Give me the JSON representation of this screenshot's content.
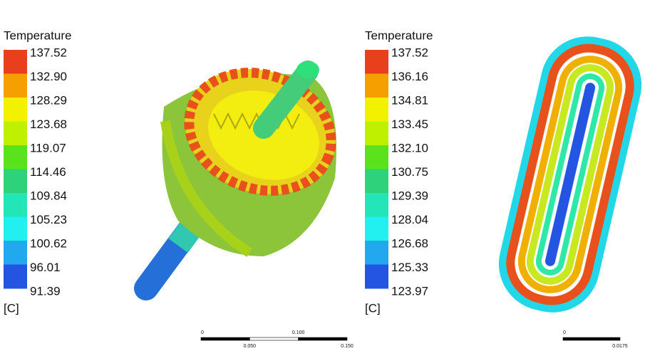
{
  "left_legend": {
    "title": "Temperature",
    "labels": [
      "137.52",
      "132.90",
      "128.29",
      "123.68",
      "119.07",
      "114.46",
      "109.84",
      "105.23",
      "100.62",
      "96.01",
      "91.39"
    ],
    "unit": "[C]"
  },
  "right_legend": {
    "title": "Temperature",
    "labels": [
      "137.52",
      "136.16",
      "134.81",
      "133.45",
      "132.10",
      "130.75",
      "129.39",
      "128.04",
      "126.68",
      "125.33",
      "123.97"
    ],
    "unit": "[C]"
  },
  "band_colors": [
    "#e8401c",
    "#f5a000",
    "#f2f200",
    "#bff000",
    "#5ae21c",
    "#2ed27a",
    "#22e6b8",
    "#22f0f0",
    "#22a8ee",
    "#2454e2"
  ],
  "left_scale": {
    "top_labels": [
      "0",
      "0.100"
    ],
    "bottom_labels": [
      "0.050",
      "0.150"
    ]
  },
  "right_scale": {
    "top_labels": [
      "0"
    ],
    "bottom_labels": [
      "0.0175"
    ]
  }
}
